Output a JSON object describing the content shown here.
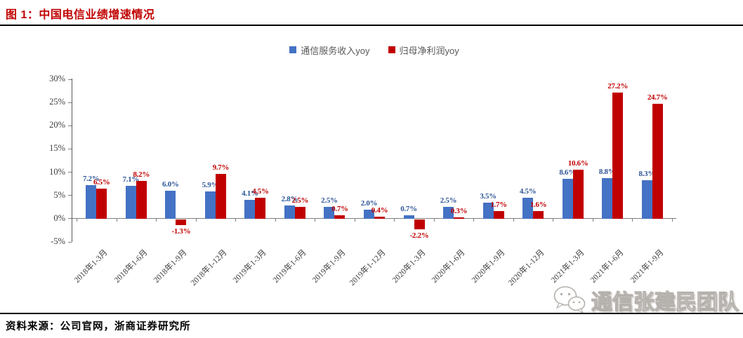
{
  "header": {
    "title": "图 1：中国电信业绩增速情况"
  },
  "watermark": {
    "text": "通信张建民团队",
    "icon": "wechat-icon"
  },
  "footer": {
    "source_label": "资料来源：公司官网，浙商证券研究所"
  },
  "colors": {
    "title_red": "#c00000",
    "series_blue": "#4472c4",
    "series_red": "#c00000",
    "blue_label": "#2e5597",
    "red_label": "#c00000",
    "axis_gray": "#7f7f7f",
    "legend_text": "#595959"
  },
  "chart_data": {
    "type": "bar",
    "title": "中国电信业绩增速情况",
    "categories": [
      "2018年1-3月",
      "2018年1-6月",
      "2018年1-9月",
      "2018年1-12月",
      "2019年1-3月",
      "2019年1-6月",
      "2019年1-9月",
      "2019年1-12月",
      "2020年1-3月",
      "2020年1-6月",
      "2020年1-9月",
      "2020年1-12月",
      "2021年1-3月",
      "2021年1-6月",
      "2021年1-9月"
    ],
    "series": [
      {
        "name": "通信服务收入yoy",
        "color": "#4472c4",
        "label_color": "#2e5597",
        "values": [
          7.2,
          7.1,
          6.0,
          5.9,
          4.1,
          2.8,
          2.5,
          2.0,
          0.7,
          2.5,
          3.5,
          4.5,
          8.6,
          8.8,
          8.3
        ]
      },
      {
        "name": "归母净利润yoy",
        "color": "#c00000",
        "label_color": "#c00000",
        "values": [
          6.5,
          8.2,
          -1.3,
          9.7,
          4.5,
          2.5,
          0.7,
          0.4,
          -2.2,
          0.3,
          1.7,
          1.6,
          10.6,
          27.2,
          24.7
        ]
      }
    ],
    "yticks": [
      "30%",
      "25%",
      "20%",
      "15%",
      "10%",
      "5%",
      "0%",
      "-5%"
    ],
    "ytick_values": [
      30,
      25,
      20,
      15,
      10,
      5,
      0,
      -5
    ],
    "ylim": [
      -5,
      30
    ],
    "grid": false,
    "legend_position": "top-center",
    "data_labels": true,
    "label_format": "0.0%"
  }
}
